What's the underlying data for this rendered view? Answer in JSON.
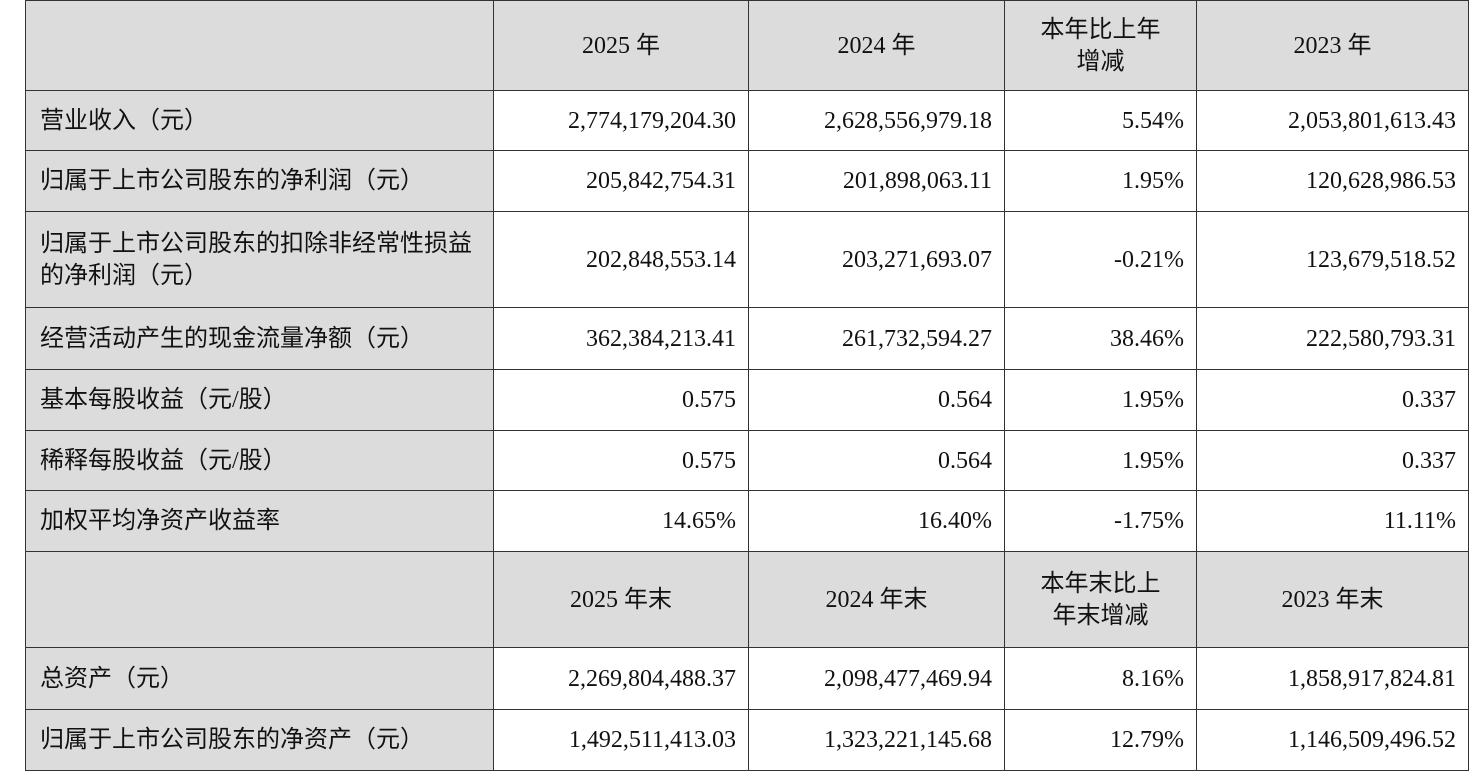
{
  "sections": [
    {
      "header": [
        "2025 年",
        "2024 年",
        "本年比上年增减",
        "2023 年"
      ],
      "rows": [
        [
          "营业收入（元）",
          "2,774,179,204.30",
          "2,628,556,979.18",
          "5.54%",
          "2,053,801,613.43"
        ],
        [
          "归属于上市公司股东的净利润（元）",
          "205,842,754.31",
          "201,898,063.11",
          "1.95%",
          "120,628,986.53"
        ],
        [
          "归属于上市公司股东的扣除非经常性损益的净利润（元）",
          "202,848,553.14",
          "203,271,693.07",
          "-0.21%",
          "123,679,518.52"
        ],
        [
          "经营活动产生的现金流量净额（元）",
          "362,384,213.41",
          "261,732,594.27",
          "38.46%",
          "222,580,793.31"
        ],
        [
          "基本每股收益（元/股）",
          "0.575",
          "0.564",
          "1.95%",
          "0.337"
        ],
        [
          "稀释每股收益（元/股）",
          "0.575",
          "0.564",
          "1.95%",
          "0.337"
        ],
        [
          "加权平均净资产收益率",
          "14.65%",
          "16.40%",
          "-1.75%",
          "11.11%"
        ]
      ]
    },
    {
      "header": [
        "2025 年末",
        "2024 年末",
        "本年末比上年末增减",
        "2023 年末"
      ],
      "rows": [
        [
          "总资产（元）",
          "2,269,804,488.37",
          "2,098,477,469.94",
          "8.16%",
          "1,858,917,824.81"
        ],
        [
          "归属于上市公司股东的净资产（元）",
          "1,492,511,413.03",
          "1,323,221,145.68",
          "12.79%",
          "1,146,509,496.52"
        ]
      ]
    }
  ]
}
